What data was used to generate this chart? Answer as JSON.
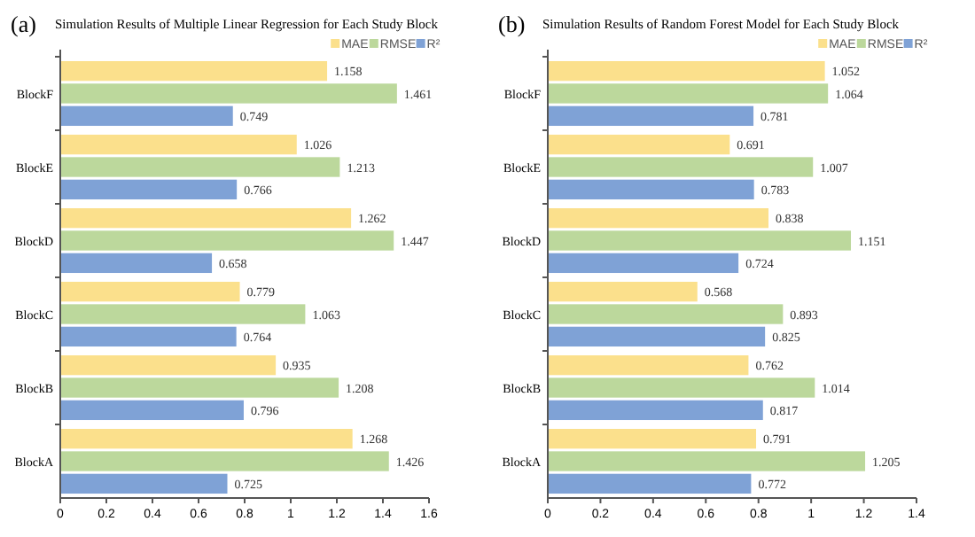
{
  "chart_data": [
    {
      "type": "bar",
      "orientation": "horizontal",
      "title": "Simulation Results of Multiple Linear Regression for Each Study Block",
      "annotations": [
        "(a)"
      ],
      "categories": [
        "BlockF",
        "BlockE",
        "BlockD",
        "BlockC",
        "BlockB",
        "BlockA"
      ],
      "series": [
        {
          "name": "MAE",
          "color": "#fbe08c",
          "values": [
            1.158,
            1.026,
            1.262,
            0.779,
            0.935,
            1.268
          ]
        },
        {
          "name": "RMSE",
          "color": "#bcd89c",
          "values": [
            1.461,
            1.213,
            1.447,
            1.063,
            1.208,
            1.426
          ]
        },
        {
          "name": "R²",
          "color": "#7fa2d6",
          "values": [
            0.749,
            0.766,
            0.658,
            0.764,
            0.796,
            0.725
          ]
        }
      ],
      "xlim": [
        0,
        1.6
      ],
      "xticks": [
        0,
        0.2,
        0.4,
        0.6,
        0.8,
        1,
        1.2,
        1.4,
        1.6
      ],
      "data_labels": true,
      "legend": "top right",
      "grid": false
    },
    {
      "type": "bar",
      "orientation": "horizontal",
      "title": "Simulation Results of Random Forest Model for Each Study Block",
      "annotations": [
        "(b)"
      ],
      "categories": [
        "BlockF",
        "BlockE",
        "BlockD",
        "BlockC",
        "BlockB",
        "BlockA"
      ],
      "series": [
        {
          "name": "MAE",
          "color": "#fbe08c",
          "values": [
            1.052,
            0.691,
            0.838,
            0.568,
            0.762,
            0.791
          ]
        },
        {
          "name": "RMSE",
          "color": "#bcd89c",
          "values": [
            1.064,
            1.007,
            1.151,
            0.893,
            1.014,
            1.205
          ]
        },
        {
          "name": "R²",
          "color": "#7fa2d6",
          "values": [
            0.781,
            0.783,
            0.724,
            0.825,
            0.817,
            0.772
          ]
        }
      ],
      "xlim": [
        0,
        1.4
      ],
      "xticks": [
        0,
        0.2,
        0.4,
        0.6,
        0.8,
        1,
        1.2,
        1.4
      ],
      "data_labels": true,
      "legend": "top right",
      "grid": false
    }
  ]
}
